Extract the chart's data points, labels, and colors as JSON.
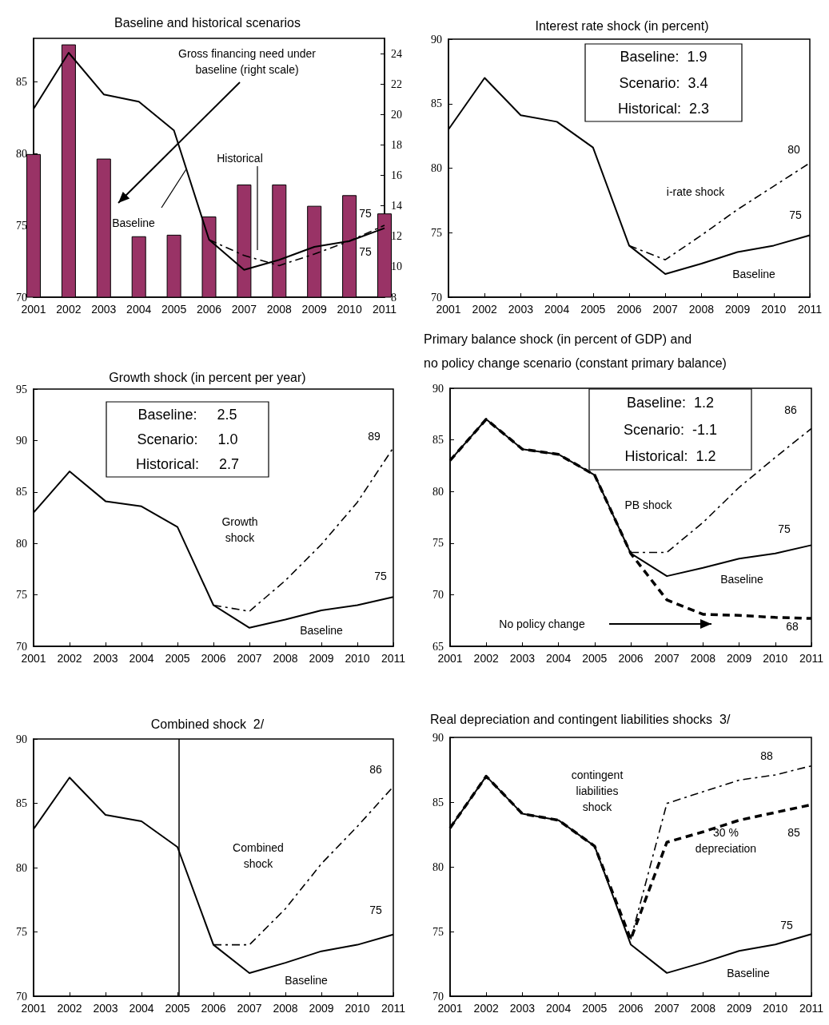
{
  "chart_data": [
    {
      "type": "line",
      "title": "Baseline and historical scenarios",
      "x": [
        2001,
        2002,
        2003,
        2004,
        2005,
        2006,
        2007,
        2008,
        2009,
        2010,
        2011
      ],
      "xlim": [
        2001,
        2011
      ],
      "xticks": [
        2001,
        2002,
        2003,
        2004,
        2005,
        2006,
        2007,
        2008,
        2009,
        2010,
        2011
      ],
      "ylim": [
        70,
        88
      ],
      "yticks": [
        70,
        75,
        80,
        85
      ],
      "y2lim": [
        8,
        25
      ],
      "y2ticks": [
        8,
        10,
        12,
        14,
        16,
        18,
        20,
        22,
        24
      ],
      "series": [
        {
          "type": "bar",
          "axis": "y2",
          "color": "#993366",
          "values": [
            17.4,
            24.6,
            17.1,
            12.0,
            12.1,
            13.3,
            15.4,
            15.4,
            14.0,
            14.7,
            13.5
          ]
        },
        {
          "color": "#000000",
          "line_style": "solid",
          "values": [
            83.1,
            87.0,
            84.1,
            83.6,
            81.6,
            74.0,
            71.9,
            72.6,
            73.5,
            73.9,
            74.8
          ]
        },
        {
          "color": "#000000",
          "line_style": "dashdot",
          "x": [
            2006,
            2007,
            2008,
            2009,
            2010,
            2011
          ],
          "values": [
            74.0,
            72.9,
            72.2,
            73.0,
            73.9,
            75.0
          ]
        }
      ],
      "annotations": [
        "Gross financing need under\nbaseline (right scale)",
        "Historical",
        {
          "text": "Baseline",
          "x": 2005.35,
          "y": 78.9
        },
        "75",
        "75"
      ]
    },
    {
      "type": "line",
      "title": "Interest rate shock (in percent)",
      "x": [
        2001,
        2002,
        2003,
        2004,
        2005,
        2006,
        2007,
        2008,
        2009,
        2010,
        2011
      ],
      "xlim": [
        2001,
        2011
      ],
      "xticks": [
        2001,
        2002,
        2003,
        2004,
        2005,
        2006,
        2007,
        2008,
        2009,
        2010,
        2011
      ],
      "ylim": [
        70,
        90
      ],
      "yticks": [
        70,
        75,
        80,
        85,
        90
      ],
      "series": [
        {
          "color": "#000000",
          "line_style": "solid",
          "values": [
            83.0,
            87.0,
            84.1,
            83.6,
            81.6,
            74.0,
            71.8,
            72.6,
            73.5,
            74.0,
            74.8
          ]
        },
        {
          "color": "#000000",
          "line_style": "dashdot",
          "x": [
            2006,
            2007,
            2008,
            2009,
            2010,
            2011
          ],
          "values": [
            74.0,
            72.9,
            74.8,
            76.8,
            78.6,
            80.4
          ]
        }
      ],
      "annotations": [
        "Baseline:  1.9",
        "Scenario:  3.4",
        "Historical:  2.3",
        "i-rate shock",
        "80",
        "75",
        "Baseline"
      ]
    },
    {
      "type": "line",
      "title": "Growth shock (in percent per year)",
      "x": [
        2001,
        2002,
        2003,
        2004,
        2005,
        2006,
        2007,
        2008,
        2009,
        2010,
        2011
      ],
      "xlim": [
        2001,
        2011
      ],
      "xticks": [
        2001,
        2002,
        2003,
        2004,
        2005,
        2006,
        2007,
        2008,
        2009,
        2010,
        2011
      ],
      "ylim": [
        70,
        95
      ],
      "yticks": [
        70,
        75,
        80,
        85,
        90,
        95
      ],
      "series": [
        {
          "color": "#000000",
          "line_style": "solid",
          "values": [
            83.0,
            87.0,
            84.1,
            83.6,
            81.6,
            74.0,
            71.8,
            72.6,
            73.5,
            74.0,
            74.8
          ]
        },
        {
          "color": "#000000",
          "line_style": "dashdot",
          "x": [
            2006,
            2007,
            2008,
            2009,
            2010,
            2011
          ],
          "values": [
            74.0,
            73.4,
            76.4,
            79.9,
            84.0,
            89.3
          ]
        }
      ],
      "annotations": [
        "Baseline:     2.5",
        "Scenario:     1.0",
        "Historical:     2.7",
        "Growth\nshock",
        "89",
        "75",
        "Baseline"
      ]
    },
    {
      "type": "line",
      "title": "Primary balance shock (in percent of GDP) and\nno policy change scenario (constant primary balance)",
      "x": [
        2001,
        2002,
        2003,
        2004,
        2005,
        2006,
        2007,
        2008,
        2009,
        2010,
        2011
      ],
      "xlim": [
        2001,
        2011
      ],
      "xticks": [
        2001,
        2002,
        2003,
        2004,
        2005,
        2006,
        2007,
        2008,
        2009,
        2010,
        2011
      ],
      "ylim": [
        65,
        90
      ],
      "yticks": [
        65,
        70,
        75,
        80,
        85,
        90
      ],
      "series": [
        {
          "color": "#000000",
          "line_style": "solid",
          "values": [
            83.0,
            87.0,
            84.1,
            83.6,
            81.6,
            74.0,
            71.8,
            72.6,
            73.5,
            74.0,
            74.8
          ]
        },
        {
          "color": "#000000",
          "line_style": "dashdot",
          "x": [
            2006,
            2007,
            2008,
            2009,
            2010,
            2011
          ],
          "values": [
            74.1,
            74.1,
            77.0,
            80.4,
            83.3,
            86.1
          ]
        },
        {
          "color": "#000000",
          "line_style": "dashed",
          "values": [
            83.0,
            87.0,
            84.1,
            83.6,
            81.6,
            74.0,
            69.5,
            68.1,
            68.0,
            67.8,
            67.7
          ]
        }
      ],
      "annotations": [
        "Baseline:  1.2",
        "Scenario:  -1.1",
        "Historical:  1.2",
        "PB shock",
        "86",
        "75",
        "Baseline",
        "No policy change",
        "68"
      ]
    },
    {
      "type": "line",
      "title": "Combined shock  2/",
      "x": [
        2001,
        2002,
        2003,
        2004,
        2005,
        2006,
        2007,
        2008,
        2009,
        2010,
        2011
      ],
      "xlim": [
        2001,
        2011
      ],
      "xticks": [
        2001,
        2002,
        2003,
        2004,
        2005,
        2006,
        2007,
        2008,
        2009,
        2010,
        2011
      ],
      "ylim": [
        70,
        90
      ],
      "yticks": [
        70,
        75,
        80,
        85,
        90
      ],
      "series": [
        {
          "color": "#000000",
          "line_style": "solid",
          "values": [
            83.0,
            87.0,
            84.1,
            83.6,
            81.6,
            74.0,
            71.8,
            72.6,
            73.5,
            74.0,
            74.8
          ]
        },
        {
          "color": "#000000",
          "line_style": "dashdot",
          "x": [
            2006,
            2007,
            2008,
            2009,
            2010,
            2011
          ],
          "values": [
            74.0,
            74.0,
            76.8,
            80.3,
            83.2,
            86.3
          ]
        }
      ],
      "ref_lines": [
        {
          "axis": "x",
          "value": 2005.05,
          "color": "#000000"
        }
      ],
      "annotations": [
        "Combined\nshock",
        "86",
        "75",
        "Baseline"
      ]
    },
    {
      "type": "line",
      "title": "Real depreciation and contingent liabilities shocks  3/",
      "x": [
        2001,
        2002,
        2003,
        2004,
        2005,
        2006,
        2007,
        2008,
        2009,
        2010,
        2011
      ],
      "xlim": [
        2001,
        2011
      ],
      "xticks": [
        2001,
        2002,
        2003,
        2004,
        2005,
        2006,
        2007,
        2008,
        2009,
        2010,
        2011
      ],
      "ylim": [
        70,
        90
      ],
      "yticks": [
        70,
        75,
        80,
        85,
        90
      ],
      "series": [
        {
          "color": "#000000",
          "line_style": "solid",
          "values": [
            83.0,
            87.0,
            84.1,
            83.6,
            81.6,
            74.0,
            71.8,
            72.6,
            73.5,
            74.0,
            74.8
          ]
        },
        {
          "color": "#000000",
          "line_style": "dashed",
          "values": [
            83.0,
            87.0,
            84.1,
            83.6,
            81.6,
            74.4,
            81.9,
            82.7,
            83.6,
            84.2,
            84.8
          ]
        },
        {
          "color": "#000000",
          "line_style": "dashdot",
          "x": [
            2006,
            2007,
            2008,
            2009,
            2010,
            2011
          ],
          "values": [
            74.4,
            84.9,
            85.8,
            86.7,
            87.1,
            87.8
          ]
        }
      ],
      "annotations": [
        "contingent\nliabilities\nshock",
        "88",
        "30 %\ndepreciation",
        "85",
        "75",
        "Baseline"
      ]
    }
  ]
}
